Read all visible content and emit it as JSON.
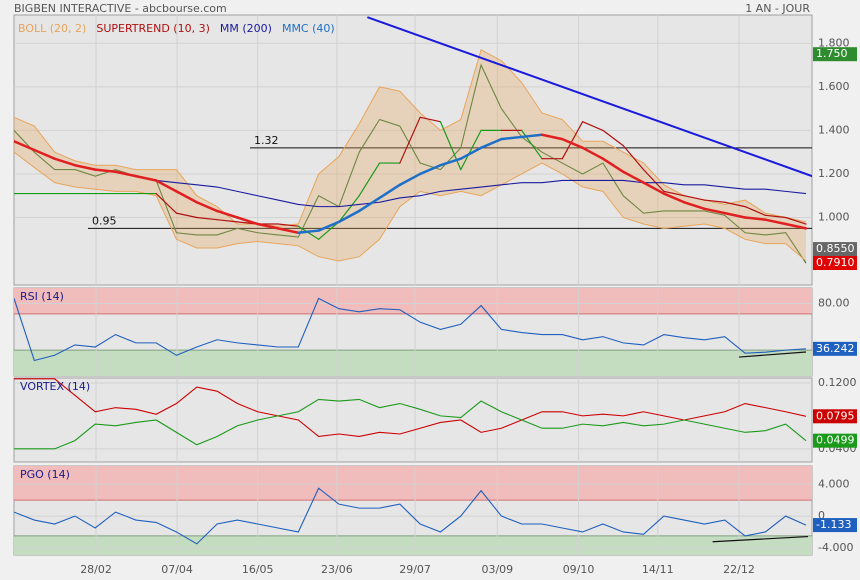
{
  "header": {
    "title": "BIGBEN INTERACTIVE - abcbourse.com",
    "period": "1 AN - JOUR"
  },
  "chart_data": [
    {
      "type": "line",
      "grid": true,
      "xlim": [
        0,
        39
      ],
      "xticks": [
        {
          "value": 4.04,
          "label": "28/02"
        },
        {
          "value": 8.03,
          "label": "07/04"
        },
        {
          "value": 12.0,
          "label": "16/05"
        },
        {
          "value": 15.9,
          "label": "23/06"
        },
        {
          "value": 19.75,
          "label": "29/07"
        },
        {
          "value": 23.8,
          "label": "03/09"
        },
        {
          "value": 27.8,
          "label": "09/10"
        },
        {
          "value": 31.7,
          "label": "14/11"
        },
        {
          "value": 35.7,
          "label": "22/12"
        }
      ],
      "ylim": [
        0.69,
        1.93
      ],
      "yticks": [
        {
          "value": 1.8,
          "label": "1.800"
        },
        {
          "value": 1.6,
          "label": "1.600"
        },
        {
          "value": 1.4,
          "label": "1.400"
        },
        {
          "value": 1.2,
          "label": "1.200"
        },
        {
          "value": 1.0,
          "label": "1.000"
        }
      ],
      "series": [
        {
          "color": "#3a7a3a",
          "values": [
            1.4,
            1.3,
            1.22,
            1.22,
            1.19,
            1.22,
            1.19,
            1.17,
            0.93,
            0.92,
            0.92,
            0.95,
            0.93,
            0.92,
            0.91,
            1.1,
            1.05,
            1.3,
            1.45,
            1.42,
            1.25,
            1.22,
            1.32,
            1.7,
            1.5,
            1.37,
            1.3,
            1.25,
            1.2,
            1.25,
            1.1,
            1.02,
            1.03,
            1.03,
            1.03,
            1.01,
            0.93,
            0.92,
            0.93,
            0.79
          ]
        },
        {
          "name": "BOLL (20, 2)",
          "color": "#e8a45a",
          "upper": [
            1.46,
            1.42,
            1.3,
            1.26,
            1.24,
            1.24,
            1.22,
            1.22,
            1.22,
            1.1,
            1.05,
            0.97,
            0.97,
            0.96,
            0.97,
            1.2,
            1.28,
            1.43,
            1.6,
            1.58,
            1.48,
            1.4,
            1.45,
            1.77,
            1.72,
            1.62,
            1.48,
            1.45,
            1.35,
            1.35,
            1.3,
            1.25,
            1.15,
            1.1,
            1.08,
            1.06,
            1.08,
            1.02,
            1.0,
            0.98
          ],
          "lower": [
            1.3,
            1.23,
            1.16,
            1.14,
            1.13,
            1.12,
            1.12,
            1.1,
            0.9,
            0.86,
            0.86,
            0.88,
            0.89,
            0.88,
            0.87,
            0.82,
            0.8,
            0.82,
            0.9,
            1.05,
            1.12,
            1.1,
            1.12,
            1.1,
            1.15,
            1.2,
            1.25,
            1.2,
            1.14,
            1.12,
            1.0,
            0.97,
            0.95,
            0.96,
            0.97,
            0.95,
            0.9,
            0.88,
            0.88,
            0.8
          ]
        },
        {
          "name": "SUPERTREND (10, 3)",
          "color": "#b01010",
          "up_color": "#1a9a1a",
          "values": [
            1.11,
            1.11,
            1.11,
            1.11,
            1.11,
            1.11,
            1.11,
            1.11,
            1.02,
            1.0,
            0.99,
            0.98,
            0.97,
            0.97,
            0.96,
            0.9,
            0.98,
            1.1,
            1.25,
            1.25,
            1.46,
            1.44,
            1.22,
            1.4,
            1.4,
            1.4,
            1.27,
            1.27,
            1.44,
            1.4,
            1.33,
            1.22,
            1.12,
            1.1,
            1.08,
            1.07,
            1.05,
            1.01,
            1.0,
            0.97
          ]
        },
        {
          "name": "MM (200)",
          "color": "#1a1aa0",
          "values": [
            null,
            null,
            null,
            null,
            null,
            null,
            null,
            1.17,
            1.16,
            1.15,
            1.14,
            1.12,
            1.1,
            1.08,
            1.06,
            1.05,
            1.05,
            1.06,
            1.07,
            1.09,
            1.1,
            1.12,
            1.13,
            1.14,
            1.15,
            1.16,
            1.16,
            1.17,
            1.17,
            1.17,
            1.17,
            1.16,
            1.16,
            1.15,
            1.15,
            1.14,
            1.13,
            1.13,
            1.12,
            1.11
          ]
        },
        {
          "name": "MMC (40)",
          "color": "#1e6fc8",
          "down_color": "#e02020",
          "values": [
            1.35,
            1.31,
            1.27,
            1.24,
            1.22,
            1.21,
            1.19,
            1.17,
            1.12,
            1.07,
            1.03,
            1.0,
            0.97,
            0.95,
            0.93,
            0.94,
            0.98,
            1.03,
            1.09,
            1.15,
            1.2,
            1.24,
            1.27,
            1.32,
            1.36,
            1.37,
            1.38,
            1.36,
            1.32,
            1.27,
            1.21,
            1.16,
            1.11,
            1.07,
            1.04,
            1.02,
            1.0,
            0.99,
            0.97,
            0.95
          ]
        }
      ],
      "levels": [
        1.32,
        0.95
      ],
      "trendlines": [
        {
          "color": "#1a1adc",
          "x": [
            17.4,
            39.3
          ],
          "values": [
            1.92,
            1.19
          ]
        }
      ],
      "badges": [
        {
          "value": 1.75,
          "label": "1.750",
          "color": "#2e8b2e"
        },
        {
          "value": 0.855,
          "label": "0.8550",
          "color": "#666666"
        },
        {
          "value": 0.791,
          "label": "0.7910",
          "color": "#e00000"
        }
      ]
    },
    {
      "type": "line",
      "title": "RSI (14)",
      "xlim": [
        0,
        39
      ],
      "ylim": [
        10,
        95
      ],
      "yticks": [
        {
          "value": 80,
          "label": "80.00"
        }
      ],
      "zones": {
        "upper": 70,
        "lower": 35
      },
      "series": [
        {
          "color": "#1f5fbf",
          "badge": true,
          "values": [
            85,
            25,
            30,
            40,
            38,
            50,
            42,
            42,
            30,
            38,
            45,
            42,
            40,
            38,
            38,
            85,
            75,
            72,
            75,
            74,
            62,
            55,
            60,
            78,
            55,
            52,
            50,
            50,
            45,
            48,
            42,
            40,
            50,
            47,
            45,
            48,
            32,
            33,
            35,
            36.242
          ]
        }
      ],
      "trendlines": [
        {
          "color": "#111111",
          "x": [
            35.7,
            39
          ],
          "values": [
            28.3,
            33.2
          ]
        }
      ]
    },
    {
      "type": "line",
      "title": "VORTEX (14)",
      "xlim": [
        0,
        39
      ],
      "ylim": [
        0.024,
        0.126
      ],
      "yticks": [
        {
          "value": 0.12,
          "label": "0.1200"
        },
        {
          "value": 0.04,
          "label": "0.0400"
        }
      ],
      "series": [
        {
          "color": "#cc0000",
          "badge": true,
          "values": [
            0.125,
            0.125,
            0.125,
            0.105,
            0.085,
            0.09,
            0.088,
            0.082,
            0.095,
            0.115,
            0.11,
            0.095,
            0.085,
            0.08,
            0.075,
            0.055,
            0.058,
            0.055,
            0.06,
            0.058,
            0.065,
            0.072,
            0.075,
            0.06,
            0.065,
            0.075,
            0.085,
            0.085,
            0.08,
            0.082,
            0.08,
            0.085,
            0.08,
            0.075,
            0.08,
            0.085,
            0.095,
            0.09,
            0.085,
            0.0795
          ]
        },
        {
          "color": "#1a9a1a",
          "badge": true,
          "values": [
            0.04,
            0.04,
            0.04,
            0.05,
            0.07,
            0.068,
            0.072,
            0.075,
            0.06,
            0.045,
            0.055,
            0.068,
            0.075,
            0.08,
            0.085,
            0.1,
            0.098,
            0.1,
            0.09,
            0.095,
            0.088,
            0.08,
            0.078,
            0.098,
            0.085,
            0.075,
            0.065,
            0.065,
            0.07,
            0.068,
            0.072,
            0.068,
            0.07,
            0.075,
            0.07,
            0.065,
            0.06,
            0.062,
            0.07,
            0.0499
          ]
        }
      ]
    },
    {
      "type": "line",
      "title": "PGO (14)",
      "xlim": [
        0,
        39
      ],
      "ylim": [
        -4.9,
        6.3
      ],
      "yticks": [
        {
          "value": 4,
          "label": "4.000"
        },
        0,
        {
          "value": -4,
          "label": "-4.000"
        }
      ],
      "zones": {
        "upper": 2,
        "lower": -2.5
      },
      "series": [
        {
          "color": "#1f5fbf",
          "badge": true,
          "values": [
            0.5,
            -0.5,
            -1,
            0,
            -1.5,
            0.5,
            -0.5,
            -0.8,
            -2,
            -3.5,
            -1,
            -0.5,
            -1,
            -1.5,
            -2,
            3.5,
            1.5,
            1,
            1,
            1.5,
            -1,
            -2,
            0,
            3.2,
            0,
            -1,
            -1,
            -1.5,
            -2,
            -1,
            -2,
            -2.3,
            0,
            -0.5,
            -1,
            -0.5,
            -2.5,
            -2,
            0,
            -1.133
          ]
        }
      ],
      "trendlines": [
        {
          "color": "#111111",
          "x": [
            34.4,
            39.1
          ],
          "values": [
            -3.23,
            -2.58
          ]
        }
      ]
    }
  ]
}
